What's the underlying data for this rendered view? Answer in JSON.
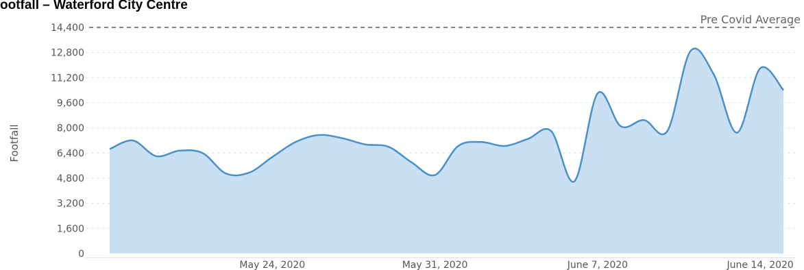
{
  "title": "ootfall – Waterford City Centre",
  "chart_data": {
    "type": "area",
    "ylabel": "Footfall",
    "xlabel": "",
    "ylim": [
      0,
      14400
    ],
    "yticks": [
      "0",
      "1,600",
      "3,200",
      "4,800",
      "6,400",
      "8,000",
      "9,600",
      "11,200",
      "12,800",
      "14,400"
    ],
    "xticks": [
      {
        "label": "May 24, 2020",
        "day": 7
      },
      {
        "label": "May 31, 2020",
        "day": 14
      },
      {
        "label": "June 7, 2020",
        "day": 21
      },
      {
        "label": "June 14, 2020",
        "day": 28
      }
    ],
    "reference_line": {
      "label": "Pre Covid Average",
      "value": 14400
    },
    "series": [
      {
        "x": [
          "May 17",
          "May 18",
          "May 19",
          "May 20",
          "May 21",
          "May 22",
          "May 23",
          "May 24",
          "May 25",
          "May 26",
          "May 27",
          "May 28",
          "May 29",
          "May 30",
          "May 31",
          "Jun 1",
          "Jun 2",
          "Jun 3",
          "Jun 4",
          "Jun 5",
          "Jun 6",
          "Jun 7",
          "Jun 8",
          "Jun 9",
          "Jun 10",
          "Jun 11",
          "Jun 12",
          "Jun 13",
          "Jun 14",
          "Jun 15"
        ],
        "values": [
          6650,
          7200,
          6200,
          6550,
          6400,
          5100,
          5150,
          6150,
          7100,
          7550,
          7350,
          6950,
          6800,
          5800,
          5000,
          6850,
          7100,
          6850,
          7300,
          7800,
          4600,
          10200,
          8100,
          8500,
          7800,
          12900,
          11400,
          7700,
          11800,
          10400
        ]
      }
    ],
    "colors": {
      "line": "#4a90c8",
      "fill": "#c9e0f4",
      "reference": "#555555",
      "grid": "#e4e4e4"
    }
  }
}
